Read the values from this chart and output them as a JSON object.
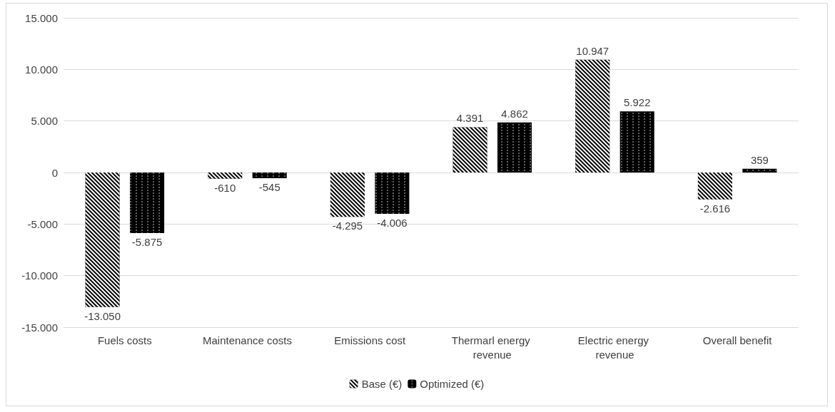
{
  "chart_data": {
    "type": "bar",
    "categories": [
      "Fuels costs",
      "Maintenance costs",
      "Emissions cost",
      "Thermarl energy revenue",
      "Electric energy revenue",
      "Overall benefit"
    ],
    "series": [
      {
        "name": "Base (€)",
        "color": "#000000",
        "values": [
          -13050,
          -610,
          -4295,
          4391,
          10947,
          -2616
        ],
        "value_labels": [
          "-13.050",
          "-610",
          "-4.295",
          "4.391",
          "10.947",
          "-2.616"
        ]
      },
      {
        "name": "Optimized (€)",
        "color": "#000000",
        "values": [
          -5875,
          -545,
          -4006,
          4862,
          5922,
          359
        ],
        "value_labels": [
          "-5.875",
          "-545",
          "-4.006",
          "4.862",
          "5.922",
          "359"
        ]
      }
    ],
    "ylim": [
      -15000,
      15000
    ],
    "yticks": [
      {
        "value": -15000,
        "label": "-15.000"
      },
      {
        "value": -10000,
        "label": "-10.000"
      },
      {
        "value": -5000,
        "label": "-5.000"
      },
      {
        "value": 0,
        "label": "0"
      },
      {
        "value": 5000,
        "label": "5.000"
      },
      {
        "value": 10000,
        "label": "10.000"
      },
      {
        "value": 15000,
        "label": "15.000"
      }
    ],
    "grid": "y",
    "legend": "bottom"
  }
}
